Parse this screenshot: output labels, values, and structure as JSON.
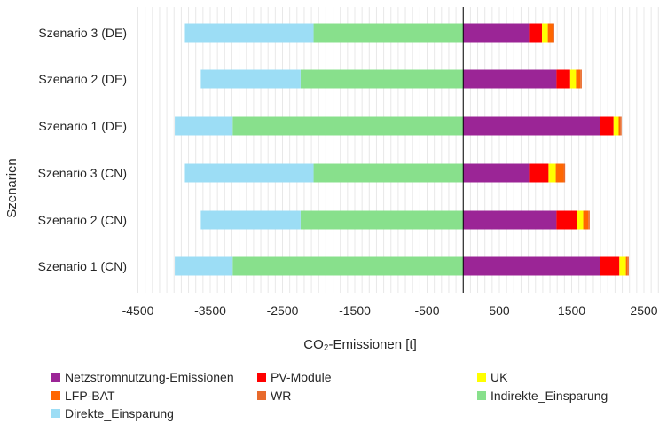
{
  "chart_data": {
    "type": "bar",
    "orientation": "horizontal",
    "stacked": true,
    "title": "",
    "xlabel": "CO₂-Emissionen [t]",
    "ylabel": "Szenarien",
    "xlim": [
      -4500,
      2500
    ],
    "x_ticks": [
      "-4500",
      "-3500",
      "-2500",
      "-1500",
      "-500",
      "500",
      "1500",
      "2500"
    ],
    "grid": "vertical minor gridlines",
    "legend_position": "bottom",
    "categories": [
      "Szenario 3 (DE)",
      "Szenario 2 (DE)",
      "Szenario 1 (DE)",
      "Szenario 3 (CN)",
      "Szenario 2 (CN)",
      "Szenario 1 (CN)"
    ],
    "series": [
      {
        "name": "Netzstromnutzung-Emissionen",
        "color": "#9B2596",
        "values": [
          910,
          1290,
          1890,
          910,
          1290,
          1890
        ]
      },
      {
        "name": "PV-Module",
        "color": "#FF0000",
        "values": [
          180,
          190,
          190,
          270,
          280,
          270
        ]
      },
      {
        "name": "UK",
        "color": "#FFFF00",
        "values": [
          80,
          80,
          70,
          100,
          90,
          90
        ]
      },
      {
        "name": "LFP-BAT",
        "color": "#FF6600",
        "values": [
          70,
          60,
          20,
          110,
          70,
          20
        ]
      },
      {
        "name": "WR",
        "color": "#E86A2C",
        "values": [
          20,
          20,
          20,
          20,
          20,
          20
        ]
      },
      {
        "name": "Indirekte_Einsparung",
        "color": "#88E08C",
        "values": [
          -2070,
          -2250,
          -3190,
          -2070,
          -2250,
          -3190
        ]
      },
      {
        "name": "Direkte_Einsparung",
        "color": "#9CDDF5",
        "values": [
          -1780,
          -1380,
          -800,
          -1780,
          -1380,
          -800
        ]
      }
    ]
  },
  "legend_layout": [
    [
      "Netzstromnutzung-Emissionen",
      "PV-Module",
      "UK"
    ],
    [
      "LFP-BAT",
      "WR",
      "Indirekte_Einsparung"
    ],
    [
      "Direkte_Einsparung"
    ]
  ]
}
